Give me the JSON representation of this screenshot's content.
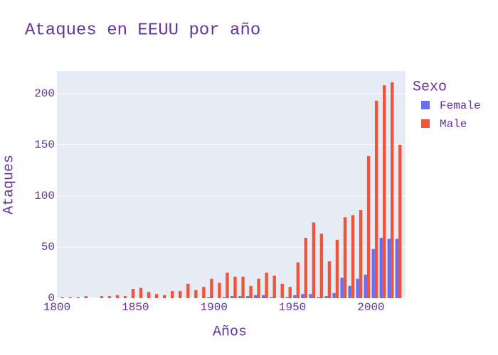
{
  "chart_data": {
    "type": "bar",
    "title": "Ataques en EEUU por año",
    "x_label": "Años",
    "y_label": "Ataques",
    "legend_title": "Sexo",
    "x": [
      1802.5,
      1807.5,
      1812.5,
      1817.5,
      1822.5,
      1827.5,
      1832.5,
      1837.5,
      1842.5,
      1847.5,
      1852.5,
      1857.5,
      1862.5,
      1867.5,
      1872.5,
      1877.5,
      1882.5,
      1887.5,
      1892.5,
      1897.5,
      1902.5,
      1907.5,
      1912.5,
      1917.5,
      1922.5,
      1927.5,
      1932.5,
      1937.5,
      1942.5,
      1947.5,
      1952.5,
      1957.5,
      1962.5,
      1967.5,
      1972.5,
      1977.5,
      1982.5,
      1987.5,
      1992.5,
      1997.5,
      2002.5,
      2007.5,
      2012.5,
      2017.5
    ],
    "series": [
      {
        "name": "Female",
        "color": "#636efa",
        "values": [
          0,
          0,
          0,
          0,
          0,
          0,
          0,
          0,
          0,
          0,
          0,
          0,
          0,
          0,
          0,
          0,
          0,
          0,
          0,
          1,
          0,
          1,
          2,
          2,
          2,
          3,
          3,
          1,
          0,
          1,
          3,
          4,
          4,
          1,
          2,
          5,
          20,
          12,
          19,
          23,
          48,
          59,
          58,
          58
        ]
      },
      {
        "name": "Male",
        "color": "#ef553b",
        "values": [
          1,
          1,
          1,
          2,
          0,
          2,
          2,
          3,
          2,
          9,
          10,
          6,
          4,
          3,
          7,
          7,
          14,
          8,
          11,
          19,
          15,
          25,
          21,
          21,
          12,
          19,
          25,
          22,
          14,
          11,
          35,
          59,
          74,
          63,
          36,
          57,
          79,
          81,
          86,
          139,
          193,
          208,
          211,
          150
        ]
      }
    ],
    "xlim": [
      1800,
      2022
    ],
    "ylim": [
      0,
      222
    ],
    "xticks": [
      1800,
      1850,
      1900,
      1950,
      2000
    ],
    "yticks": [
      0,
      50,
      100,
      150,
      200
    ],
    "grid": true
  }
}
